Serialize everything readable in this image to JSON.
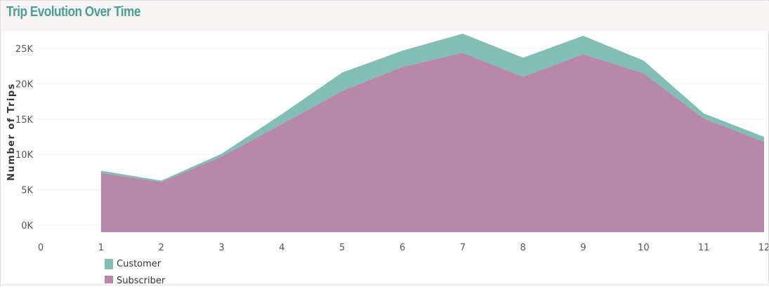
{
  "page": {
    "title": "Trip Evolution Over Time"
  },
  "chart_data": {
    "type": "area",
    "stacked": true,
    "title": "Trip Evolution Over Time",
    "xlabel": "",
    "ylabel": "Number of Trips",
    "x": [
      1,
      2,
      3,
      4,
      5,
      6,
      7,
      8,
      9,
      10,
      11,
      12
    ],
    "xticks": [
      0,
      1,
      2,
      3,
      4,
      5,
      6,
      7,
      8,
      9,
      10,
      11,
      12
    ],
    "xlim": [
      0,
      12
    ],
    "yticks": [
      {
        "value": 0,
        "label": "0K"
      },
      {
        "value": 5000,
        "label": "5K"
      },
      {
        "value": 10000,
        "label": "10K"
      },
      {
        "value": 15000,
        "label": "15K"
      },
      {
        "value": 20000,
        "label": "20K"
      },
      {
        "value": 25000,
        "label": "25K"
      }
    ],
    "ylim": [
      -1000,
      27500
    ],
    "grid": true,
    "legend_position": "bottom-left",
    "series": [
      {
        "name": "Subscriber",
        "color": "#b888a8",
        "values": [
          7400,
          6100,
          9700,
          14300,
          19000,
          22400,
          24400,
          21000,
          24200,
          21500,
          15100,
          11800
        ]
      },
      {
        "name": "Customer",
        "color": "#82bdb6",
        "values": [
          300,
          200,
          400,
          1400,
          2600,
          2300,
          2700,
          2700,
          2600,
          1800,
          700,
          700
        ]
      }
    ]
  }
}
